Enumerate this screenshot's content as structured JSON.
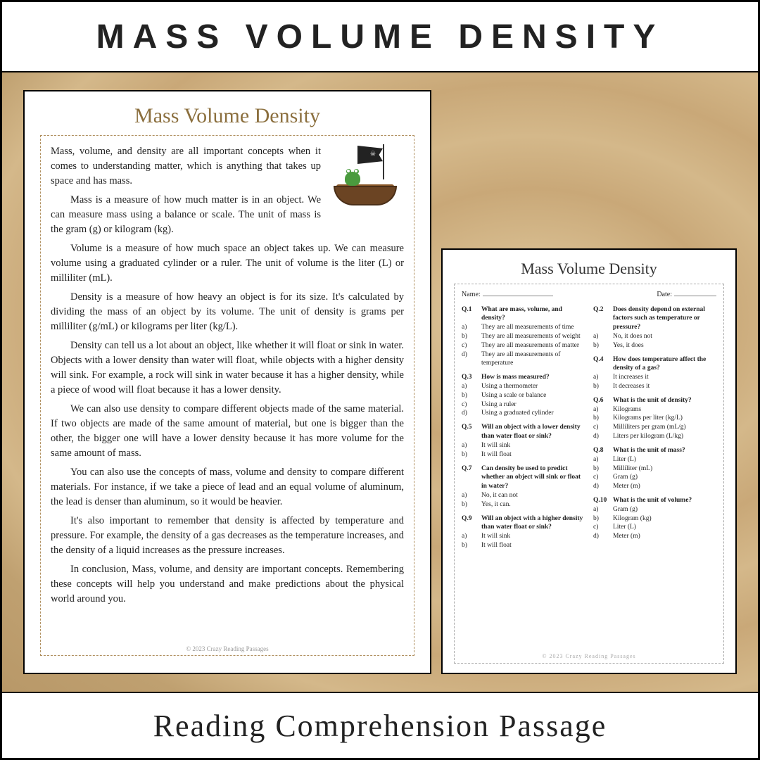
{
  "banner": {
    "top": "MASS VOLUME DENSITY",
    "bottom": "Reading  Comprehension Passage"
  },
  "passage": {
    "title": "Mass Volume Density",
    "paragraphs": [
      "Mass, volume, and density are all important concepts when it comes to understanding matter, which is anything that takes up space and has mass.",
      "Mass is a measure of how much matter is in an object. We can measure mass using a balance or scale. The unit of mass is the gram (g) or kilogram (kg).",
      "Volume is a measure of how much space an object takes up. We can measure volume using a graduated cylinder or a ruler. The unit of volume is the liter (L) or milliliter (mL).",
      "Density is a measure of how heavy an object is for its size. It's calculated by dividing the mass of an object by its volume. The unit of density is grams per milliliter (g/mL) or kilograms per liter (kg/L).",
      "Density can tell us a lot about an object, like whether it will float or sink in water. Objects with a lower density than water will float, while objects with a higher density will sink. For example, a rock will sink in water because it has a higher density, while a piece of wood will float because it has a lower density.",
      "We can also use density to compare different objects made of the same material. If two objects are made of the same amount of material, but one is bigger than the other, the bigger one will have a lower density because it has more volume for the same amount of mass.",
      "You can also use the concepts of mass, volume and density to compare different materials. For instance, if we take a piece of lead and an equal volume of aluminum, the lead is denser than aluminum, so it would be heavier.",
      "It's also important to remember that density is affected by temperature and pressure. For example, the density of a gas decreases as the temperature increases, and the density of a liquid increases as the pressure increases.",
      "In conclusion, Mass, volume, and density are important concepts. Remembering these concepts will help you understand and make predictions about the physical world around you."
    ],
    "copyright": "© 2023 Crazy Reading Passages"
  },
  "quiz": {
    "title": "Mass Volume Density",
    "name_label": "Name:",
    "date_label": "Date:",
    "copyright": "© 2023 Crazy  Reading  Passages",
    "left": [
      {
        "num": "Q.1",
        "q": "What are mass, volume, and density?",
        "opts": [
          [
            "a)",
            "They are all measurements of time"
          ],
          [
            "b)",
            "They are all measurements of weight"
          ],
          [
            "c)",
            "They are all measurements of matter"
          ],
          [
            "d)",
            "They are all measurements of temperature"
          ]
        ]
      },
      {
        "num": "Q.3",
        "q": "How is mass measured?",
        "opts": [
          [
            "a)",
            "Using a thermometer"
          ],
          [
            "b)",
            "Using a scale or balance"
          ],
          [
            "c)",
            "Using a ruler"
          ],
          [
            "d)",
            "Using a graduated cylinder"
          ]
        ]
      },
      {
        "num": "Q.5",
        "q": "Will an object with a lower density than water float or sink?",
        "opts": [
          [
            "a)",
            "It will sink"
          ],
          [
            "b)",
            "It will float"
          ]
        ]
      },
      {
        "num": "Q.7",
        "q": "Can density be used to predict whether an object will sink or float in water?",
        "opts": [
          [
            "a)",
            "No, it can not"
          ],
          [
            "b)",
            "Yes, it can."
          ]
        ]
      },
      {
        "num": "Q.9",
        "q": "Will an object with a higher density than water float or sink?",
        "opts": [
          [
            "a)",
            "It will sink"
          ],
          [
            "b)",
            "It will float"
          ]
        ]
      }
    ],
    "right": [
      {
        "num": "Q.2",
        "q": "Does density depend on external factors such as temperature or pressure?",
        "opts": [
          [
            "a)",
            "No, it does not"
          ],
          [
            "b)",
            "Yes, it does"
          ]
        ]
      },
      {
        "num": "Q.4",
        "q": "How does temperature affect the density of a gas?",
        "opts": [
          [
            "a)",
            "It increases it"
          ],
          [
            "b)",
            "It decreases it"
          ]
        ]
      },
      {
        "num": "Q.6",
        "q": "What is the unit of density?",
        "opts": [
          [
            "a)",
            "Kilograms"
          ],
          [
            "b)",
            "Kilograms per liter (kg/L)"
          ],
          [
            "c)",
            "Milliliters per gram (mL/g)"
          ],
          [
            "d)",
            "Liters per kilogram (L/kg)"
          ]
        ]
      },
      {
        "num": "Q.8",
        "q": "What is the unit of mass?",
        "opts": [
          [
            "a)",
            "Liter (L)"
          ],
          [
            "b)",
            "Milliliter (mL)"
          ],
          [
            "c)",
            "Gram (g)"
          ],
          [
            "d)",
            "Meter (m)"
          ]
        ]
      },
      {
        "num": "Q.10",
        "q": "What is the unit of volume?",
        "opts": [
          [
            "a)",
            "Gram (g)"
          ],
          [
            "b)",
            "Kilogram (kg)"
          ],
          [
            "c)",
            "Liter (L)"
          ],
          [
            "d)",
            "Meter (m)"
          ]
        ]
      }
    ]
  }
}
